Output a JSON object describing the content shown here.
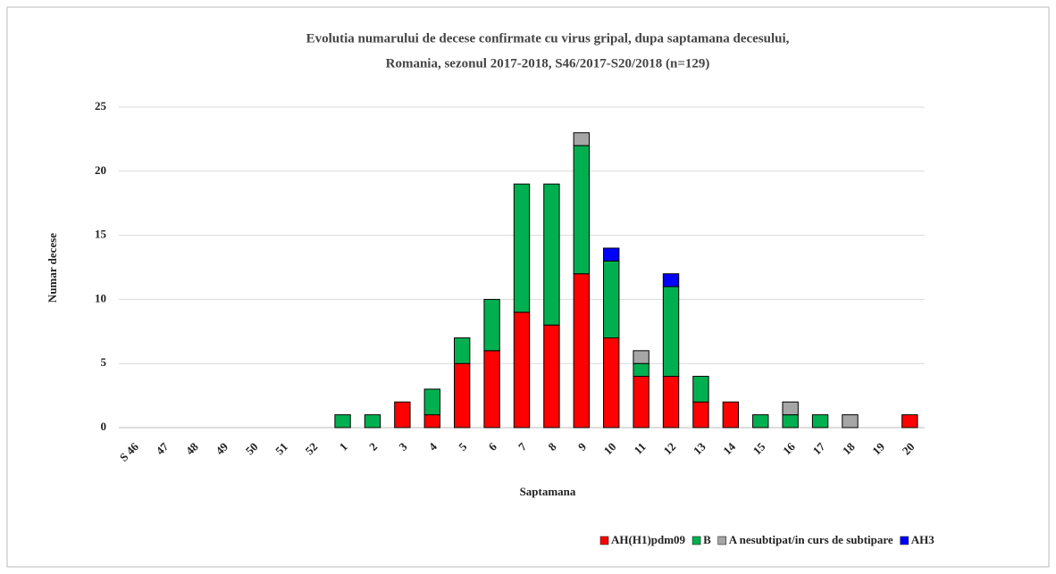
{
  "chart_data": {
    "type": "stacked_bar",
    "title": [
      "Evolutia numarului  de decese confirmate cu virus gripal, dupa saptamana decesului,",
      "Romania, sezonul 2017-2018, S46/2017-S20/2018 (n=129)"
    ],
    "x_label": "Saptamana",
    "y_label": "Numar  decese",
    "categories": [
      "S 46",
      "47",
      "48",
      "49",
      "50",
      "51",
      "52",
      "1",
      "2",
      "3",
      "4",
      "5",
      "6",
      "7",
      "8",
      "9",
      "10",
      "11",
      "12",
      "13",
      "14",
      "15",
      "16",
      "17",
      "18",
      "19",
      "20"
    ],
    "series": [
      {
        "name": "AH(H1)pdm09",
        "color": "#ff0000",
        "values": [
          0,
          0,
          0,
          0,
          0,
          0,
          0,
          0,
          0,
          2,
          1,
          5,
          6,
          9,
          8,
          12,
          7,
          4,
          4,
          2,
          2,
          0,
          0,
          0,
          0,
          0,
          1
        ]
      },
      {
        "name": "B",
        "color": "#00b050",
        "values": [
          0,
          0,
          0,
          0,
          0,
          0,
          0,
          1,
          1,
          0,
          2,
          2,
          4,
          10,
          11,
          10,
          6,
          1,
          7,
          2,
          0,
          1,
          1,
          1,
          0,
          0,
          0
        ]
      },
      {
        "name": "A nesubtipat/in curs de subtipare",
        "color": "#a6a6a6",
        "values": [
          0,
          0,
          0,
          0,
          0,
          0,
          0,
          0,
          0,
          0,
          0,
          0,
          0,
          0,
          0,
          1,
          0,
          1,
          0,
          0,
          0,
          0,
          1,
          0,
          1,
          0,
          0
        ]
      },
      {
        "name": "AH3",
        "color": "#0000ff",
        "values": [
          0,
          0,
          0,
          0,
          0,
          0,
          0,
          0,
          0,
          0,
          0,
          0,
          0,
          0,
          0,
          0,
          1,
          0,
          1,
          0,
          0,
          0,
          0,
          0,
          0,
          0,
          0
        ]
      }
    ],
    "ylim": [
      0,
      25
    ],
    "yticks": [
      0,
      5,
      10,
      15,
      20,
      25
    ],
    "grid": true,
    "legend": "bottom-right"
  }
}
